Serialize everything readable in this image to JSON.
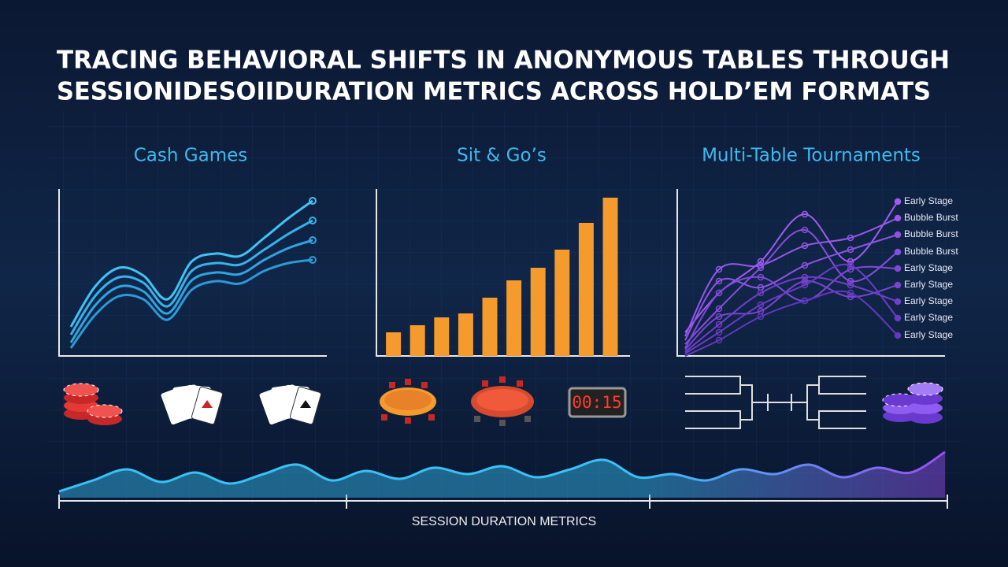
{
  "title": [
    "TRACING BEHAVIORAL SHIFTS IN ANONYMOUS TABLES THROUGH",
    "SESSIONIDESOIIDURATION METRICS ACROSS HOLD’EM FORMATS"
  ],
  "clock": "00:15",
  "chart_data": [
    {
      "type": "line",
      "title": "Cash Games",
      "x": [
        0,
        1,
        2,
        3,
        4,
        5,
        6,
        7,
        8,
        9,
        10
      ],
      "xlim": [
        0,
        10
      ],
      "ylim": [
        0,
        212
      ],
      "series": [
        {
          "color": "#3fc3f5",
          "values": [
            37,
            88,
            112,
            102,
            72,
            120,
            130,
            127,
            150,
            175,
            197
          ]
        },
        {
          "color": "#35b3ec",
          "values": [
            27,
            76,
            100,
            93,
            63,
            108,
            118,
            116,
            135,
            155,
            172
          ]
        },
        {
          "color": "#2ea5e2",
          "values": [
            17,
            64,
            88,
            82,
            54,
            96,
            106,
            104,
            122,
            137,
            147
          ]
        },
        {
          "color": "#2a9ad8",
          "values": [
            10,
            52,
            76,
            72,
            46,
            84,
            95,
            92,
            108,
            118,
            122
          ]
        }
      ]
    },
    {
      "type": "bar",
      "title": "Sit & Go’s",
      "color": "#f59a2c",
      "ylim": [
        0,
        212
      ],
      "categories": [
        null,
        null,
        null,
        null,
        null,
        null,
        null,
        null,
        null,
        null
      ],
      "values": [
        30,
        39,
        49,
        54,
        74,
        96,
        112,
        135,
        169,
        201
      ]
    },
    {
      "type": "line",
      "title": "Multi-Table Tournaments",
      "x": [
        0,
        43,
        96,
        152,
        210,
        270
      ],
      "xlim": [
        0,
        270
      ],
      "ylim": [
        0,
        212
      ],
      "series": [
        {
          "name": "Early Stage",
          "color": "#a05cf0",
          "values": [
            30,
            80,
            120,
            180,
            120,
            196
          ]
        },
        {
          "name": "Bubble Burst",
          "color": "#9857ea",
          "values": [
            25,
            110,
            115,
            140,
            150,
            175
          ]
        },
        {
          "name": "Bubble Burst",
          "color": "#8f52e4",
          "values": [
            20,
            95,
            87,
            115,
            135,
            154
          ]
        },
        {
          "name": "Bubble Burst",
          "color": "#874dde",
          "values": [
            15,
            60,
            112,
            160,
            95,
            132
          ]
        },
        {
          "name": "Early Stage",
          "color": "#8048d8",
          "values": [
            10,
            80,
            100,
            70,
            110,
            111
          ]
        },
        {
          "name": "Early Stage",
          "color": "#7944d2",
          "values": [
            8,
            50,
            57,
            95,
            75,
            90
          ]
        },
        {
          "name": "Early Stage",
          "color": "#723fcc",
          "values": [
            5,
            40,
            80,
            100,
            90,
            69
          ]
        },
        {
          "name": "Early Stage",
          "color": "#6b3bc6",
          "values": [
            3,
            30,
            65,
            90,
            115,
            48
          ]
        },
        {
          "name": "Early Stage",
          "color": "#6437c0",
          "values": [
            0,
            20,
            50,
            70,
            80,
            26
          ]
        }
      ]
    },
    {
      "type": "area",
      "xlabel": "SESSION DURATION METRICS",
      "colors": [
        "#37c2f7",
        "#9a4ef2"
      ],
      "ylim": [
        0,
        62
      ],
      "values": [
        8,
        22,
        36,
        20,
        32,
        18,
        30,
        42,
        22,
        34,
        24,
        38,
        30,
        40,
        26,
        36,
        48,
        26,
        30,
        22,
        36,
        30,
        42,
        26,
        38,
        32,
        58
      ]
    }
  ]
}
